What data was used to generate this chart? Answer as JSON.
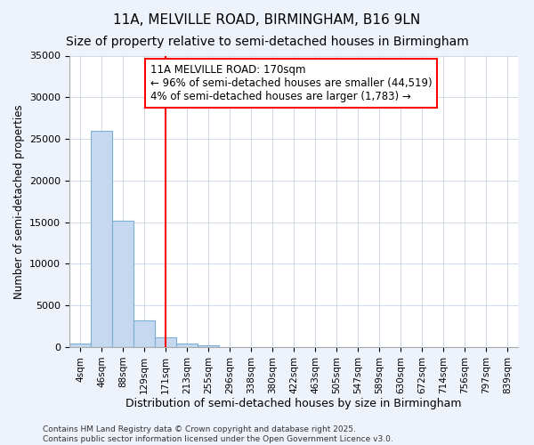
{
  "title1": "11A, MELVILLE ROAD, BIRMINGHAM, B16 9LN",
  "title2": "Size of property relative to semi-detached houses in Birmingham",
  "xlabel": "Distribution of semi-detached houses by size in Birmingham",
  "ylabel": "Number of semi-detached properties",
  "categories": [
    "4sqm",
    "46sqm",
    "88sqm",
    "129sqm",
    "171sqm",
    "213sqm",
    "255sqm",
    "296sqm",
    "338sqm",
    "380sqm",
    "422sqm",
    "463sqm",
    "505sqm",
    "547sqm",
    "589sqm",
    "630sqm",
    "672sqm",
    "714sqm",
    "756sqm",
    "797sqm",
    "839sqm"
  ],
  "values": [
    400,
    26000,
    15200,
    3200,
    1200,
    450,
    200,
    0,
    0,
    0,
    0,
    0,
    0,
    0,
    0,
    0,
    0,
    0,
    0,
    0,
    0
  ],
  "bar_color": "#c5d8f0",
  "bar_edge_color": "#7bafd4",
  "vline_x": 4,
  "vline_color": "red",
  "annotation_text": "11A MELVILLE ROAD: 170sqm\n← 96% of semi-detached houses are smaller (44,519)\n4% of semi-detached houses are larger (1,783) →",
  "annotation_box_color": "white",
  "annotation_box_edge": "red",
  "ylim": [
    0,
    35000
  ],
  "yticks": [
    0,
    5000,
    10000,
    15000,
    20000,
    25000,
    30000,
    35000
  ],
  "footer": "Contains HM Land Registry data © Crown copyright and database right 2025.\nContains public sector information licensed under the Open Government Licence v3.0.",
  "bg_color": "#eef2fb",
  "plot_bg_color": "#ffffff",
  "title_fontsize": 11,
  "subtitle_fontsize": 10,
  "annotation_fontsize": 8.5
}
